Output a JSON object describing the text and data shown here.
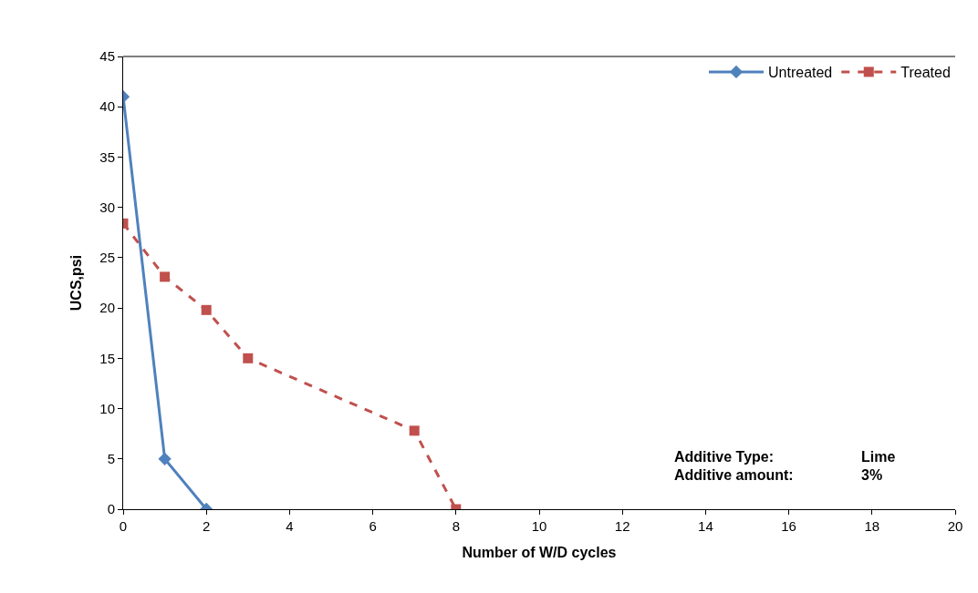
{
  "chart_data": {
    "type": "line",
    "xlabel": "Number of W/D cycles",
    "ylabel": "UCS,psi",
    "xlim": [
      0,
      20
    ],
    "xticks": [
      0,
      2,
      4,
      6,
      8,
      10,
      12,
      14,
      16,
      18,
      20
    ],
    "ylim": [
      0,
      45
    ],
    "yticks": [
      0,
      5,
      10,
      15,
      20,
      25,
      30,
      35,
      40,
      45
    ],
    "grid": false,
    "legend": "top right",
    "series": [
      {
        "name": "Untreated",
        "color": "#4f81bd",
        "x": [
          0,
          1,
          2
        ],
        "values": [
          41,
          5,
          0
        ],
        "marker": "diamond",
        "line_style": "solid"
      },
      {
        "name": "Treated",
        "color": "#c0504d",
        "x": [
          0,
          1,
          2,
          3,
          7,
          8
        ],
        "values": [
          28.4,
          23.1,
          19.8,
          15,
          7.8,
          0
        ],
        "marker": "square",
        "line_style": "dashed"
      }
    ],
    "annotations": [
      "Additive Type:",
      "Lime",
      "Additive amount:",
      "3%"
    ]
  }
}
